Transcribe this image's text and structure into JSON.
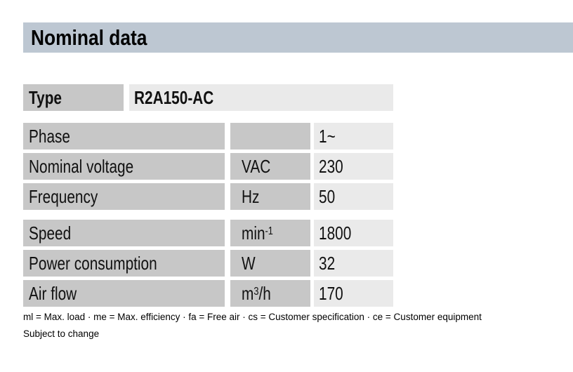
{
  "header": {
    "title": "Nominal data"
  },
  "table": {
    "type_row": {
      "label": "Type",
      "value": "R2A150-AC"
    },
    "rows": [
      {
        "label": "Phase",
        "unit_pre": "",
        "unit_sup": "",
        "unit_post": "",
        "value": "1~"
      },
      {
        "label": "Nominal voltage",
        "unit_pre": "VAC",
        "unit_sup": "",
        "unit_post": "",
        "value": "230"
      },
      {
        "label": "Frequency",
        "unit_pre": "Hz",
        "unit_sup": "",
        "unit_post": "",
        "value": "50"
      },
      {
        "label": "Speed",
        "unit_pre": "min",
        "unit_sup": "-1",
        "unit_post": "",
        "value": "1800"
      },
      {
        "label": "Power consumption",
        "unit_pre": "W",
        "unit_sup": "",
        "unit_post": "",
        "value": "32"
      },
      {
        "label": "Air flow",
        "unit_pre": "m",
        "unit_sup": "3",
        "unit_post": "/h",
        "value": "170"
      }
    ]
  },
  "footer": {
    "legend": "ml = Max. load · me = Max. efficiency · fa = Free air · cs = Customer specification · ce = Customer equipment",
    "note": "Subject to change"
  },
  "colors": {
    "header_bar": "#bdc7d2",
    "label_cell": "#c7c7c7",
    "value_cell": "#eaeaea",
    "text": "#111111"
  }
}
